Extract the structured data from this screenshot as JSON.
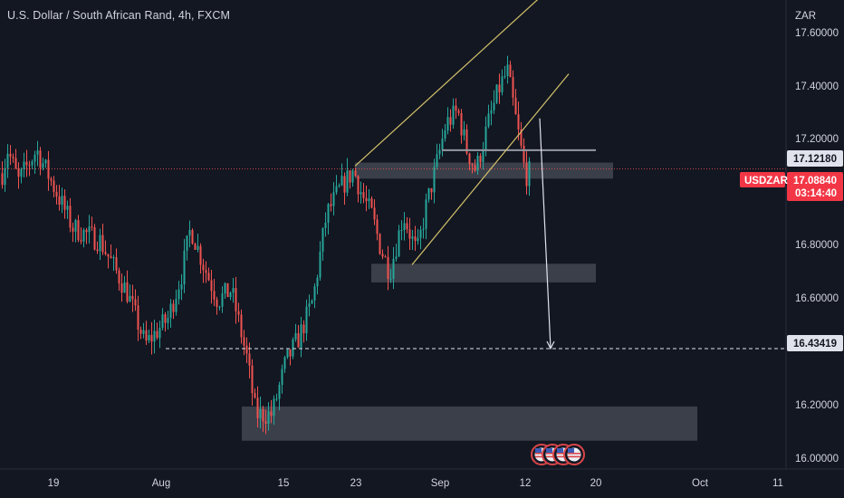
{
  "title": "U.S. Dollar / South African Rand, 4h, FXCM",
  "currency_label": "ZAR",
  "symbol_tag": "USDZAR",
  "countdown": "03:14:40",
  "colors": {
    "background": "#131722",
    "up": "#26a69a",
    "down": "#ef5350",
    "trendline": "#d4c26a",
    "zone": "#4a4e58",
    "text": "#d1d4dc",
    "price_line": "#ef5350"
  },
  "chart_data": {
    "type": "candlestick",
    "y_axis": {
      "ticks": [
        "17.60000",
        "17.40000",
        "17.20000",
        "16.80000",
        "16.60000",
        "16.20000",
        "16.00000"
      ],
      "tick_values": [
        17.6,
        17.4,
        17.2,
        16.8,
        16.6,
        16.2,
        16.0
      ],
      "range": [
        15.97,
        17.76
      ]
    },
    "x_axis": {
      "ticks": [
        "19",
        "Aug",
        "15",
        "23",
        "Sep",
        "12",
        "20",
        "Oct",
        "11"
      ]
    },
    "price_labels": {
      "level_high": "17.12180",
      "current": "17.08840",
      "target": "16.43419"
    },
    "levels": {
      "level_high": 17.1218,
      "current": 17.0884,
      "target": 16.43419
    },
    "anchors": [
      [
        0,
        17.08
      ],
      [
        8,
        17.2
      ],
      [
        20,
        17.08
      ],
      [
        40,
        17.2
      ],
      [
        60,
        17.05
      ],
      [
        80,
        16.9
      ],
      [
        110,
        16.85
      ],
      [
        140,
        16.65
      ],
      [
        160,
        16.45
      ],
      [
        185,
        16.55
      ],
      [
        200,
        16.72
      ],
      [
        210,
        16.9
      ],
      [
        225,
        16.75
      ],
      [
        240,
        16.62
      ],
      [
        255,
        16.66
      ],
      [
        272,
        16.4
      ],
      [
        282,
        16.18
      ],
      [
        300,
        16.18
      ],
      [
        315,
        16.38
      ],
      [
        330,
        16.48
      ],
      [
        345,
        16.62
      ],
      [
        360,
        16.95
      ],
      [
        375,
        17.05
      ],
      [
        390,
        17.12
      ],
      [
        400,
        17.02
      ],
      [
        410,
        16.95
      ],
      [
        420,
        16.82
      ],
      [
        430,
        16.73
      ],
      [
        445,
        16.95
      ],
      [
        460,
        16.8
      ],
      [
        470,
        16.98
      ],
      [
        480,
        17.12
      ],
      [
        492,
        17.3
      ],
      [
        505,
        17.35
      ],
      [
        515,
        17.2
      ],
      [
        525,
        17.12
      ],
      [
        540,
        17.32
      ],
      [
        552,
        17.45
      ],
      [
        560,
        17.5
      ],
      [
        570,
        17.3
      ],
      [
        580,
        17.1
      ],
      [
        586,
        17.12
      ]
    ],
    "trendlines": [
      {
        "from": [
          "Aug 21",
          17.12
        ],
        "to": [
          "Sep 16",
          17.95
        ]
      },
      {
        "from": [
          "Aug 28",
          16.74
        ],
        "to": [
          "Sep 15",
          17.58
        ]
      }
    ],
    "zones": [
      {
        "low": 17.11,
        "high": 17.13
      },
      {
        "low": 16.71,
        "high": 16.74
      },
      {
        "low": 16.1,
        "high": 16.19
      }
    ],
    "projection": {
      "from": 17.37,
      "to": 16.43419
    },
    "event_markers": 4
  }
}
